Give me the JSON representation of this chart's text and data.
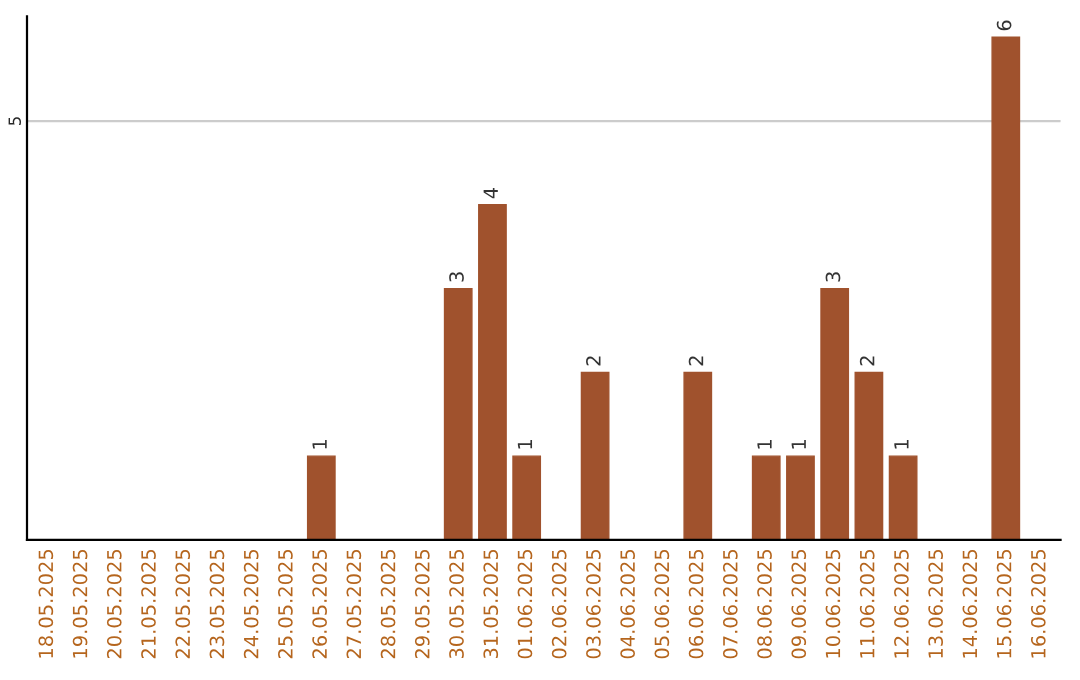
{
  "chart_data": {
    "type": "bar",
    "categories": [
      "18.05.2025",
      "19.05.2025",
      "20.05.2025",
      "21.05.2025",
      "22.05.2025",
      "23.05.2025",
      "24.05.2025",
      "25.05.2025",
      "26.05.2025",
      "27.05.2025",
      "28.05.2025",
      "29.05.2025",
      "30.05.2025",
      "31.05.2025",
      "01.06.2025",
      "02.06.2025",
      "03.06.2025",
      "04.06.2025",
      "05.06.2025",
      "06.06.2025",
      "07.06.2025",
      "08.06.2025",
      "09.06.2025",
      "10.06.2025",
      "11.06.2025",
      "12.06.2025",
      "13.06.2025",
      "14.06.2025",
      "15.06.2025",
      "16.06.2025"
    ],
    "values": [
      0,
      0,
      0,
      0,
      0,
      0,
      0,
      0,
      1,
      0,
      0,
      0,
      3,
      4,
      1,
      0,
      2,
      0,
      0,
      2,
      0,
      1,
      1,
      3,
      2,
      1,
      0,
      0,
      6,
      0
    ],
    "value_labels": [
      null,
      null,
      null,
      null,
      null,
      null,
      null,
      null,
      "1",
      null,
      null,
      null,
      "3",
      "4",
      "1",
      null,
      "2",
      null,
      null,
      "2",
      null,
      "1",
      "1",
      "3",
      "2",
      "1",
      null,
      null,
      "6",
      null
    ],
    "color": "#a0522d",
    "ylim": [
      0,
      6.25
    ],
    "yticks": [
      5
    ],
    "grid": "y",
    "legend": false
  }
}
